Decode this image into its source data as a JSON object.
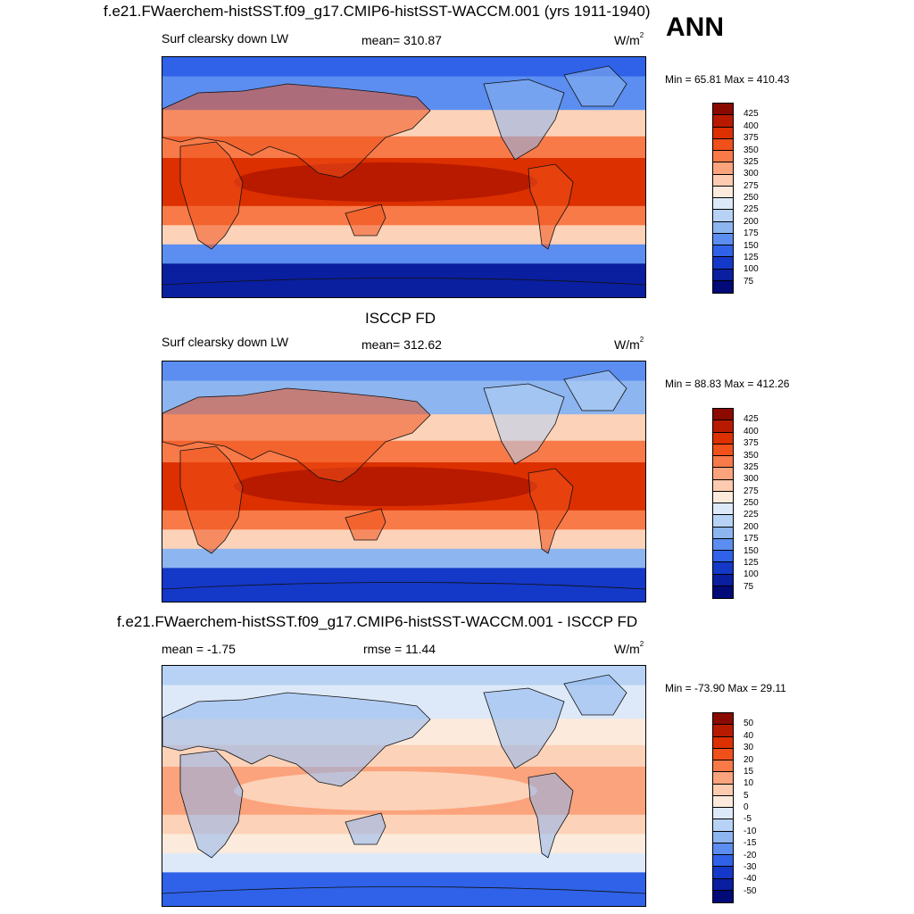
{
  "season": "ANN",
  "unit_base": "W/m",
  "unit_exp": "2",
  "panels": [
    {
      "title": "f.e21.FWaerchem-histSST.f09_g17.CMIP6-histSST-WACCM.001 (yrs 1911-1940)",
      "variable": "Surf clearsky down LW",
      "stat": "mean= 310.87",
      "minmax": "Min =  65.81 Max = 410.43",
      "colorbar_labels": [
        "425",
        "400",
        "375",
        "350",
        "325",
        "300",
        "275",
        "250",
        "225",
        "200",
        "175",
        "150",
        "125",
        "100",
        "75"
      ],
      "colorbar_colors": [
        "#8a0a00",
        "#b81a00",
        "#dc3000",
        "#f0501a",
        "#f77a48",
        "#fba37c",
        "#fdcbb0",
        "#fcebdc",
        "#dde9f8",
        "#b7d2f4",
        "#8db5ef",
        "#5b8ef0",
        "#2f62e8",
        "#1438c8",
        "#0a1ea0",
        "#020a78"
      ],
      "map_colors": {
        "polar_s": "#0a1ea0",
        "sub_s": "#5b8ef0",
        "mid": "#fcd2b8",
        "warm": "#f77a48",
        "hot": "#dc3000",
        "core": "#b81a00",
        "land_warm": "#f0501a",
        "cold_land": "#8db5ef",
        "arctic": "#2f62e8"
      }
    },
    {
      "title": "ISCCP FD",
      "variable": "Surf clearsky down LW",
      "stat": "mean= 312.62",
      "minmax": "Min =  88.83 Max = 412.26",
      "colorbar_labels": [
        "425",
        "400",
        "375",
        "350",
        "325",
        "300",
        "275",
        "250",
        "225",
        "200",
        "175",
        "150",
        "125",
        "100",
        "75"
      ],
      "colorbar_colors": [
        "#8a0a00",
        "#b81a00",
        "#dc3000",
        "#f0501a",
        "#f77a48",
        "#fba37c",
        "#fdcbb0",
        "#fcebdc",
        "#dde9f8",
        "#b7d2f4",
        "#8db5ef",
        "#5b8ef0",
        "#2f62e8",
        "#1438c8",
        "#0a1ea0",
        "#020a78"
      ],
      "map_colors": {
        "polar_s": "#1438c8",
        "sub_s": "#8db5ef",
        "mid": "#fcd2b8",
        "warm": "#f77a48",
        "hot": "#dc3000",
        "core": "#b81a00",
        "land_warm": "#f0501a",
        "cold_land": "#b7d2f4",
        "arctic": "#5b8ef0"
      }
    },
    {
      "title": "f.e21.FWaerchem-histSST.f09_g17.CMIP6-histSST-WACCM.001 - ISCCP FD",
      "variable": "mean =  -1.75",
      "stat": "rmse =  11.44",
      "minmax": "Min = -73.90 Max =  29.11",
      "colorbar_labels": [
        "50",
        "40",
        "30",
        "20",
        "15",
        "10",
        "5",
        "0",
        "-5",
        "-10",
        "-15",
        "-20",
        "-30",
        "-40",
        "-50"
      ],
      "colorbar_colors": [
        "#8a0a00",
        "#b81a00",
        "#dc3000",
        "#f0501a",
        "#f77a48",
        "#fba37c",
        "#fdcbb0",
        "#fcebdc",
        "#dde9f8",
        "#b7d2f4",
        "#8db5ef",
        "#5b8ef0",
        "#2f62e8",
        "#1438c8",
        "#0a1ea0",
        "#020a78"
      ],
      "map_colors": {
        "polar_s": "#2f62e8",
        "sub_s": "#dde9f8",
        "mid": "#fcebdc",
        "warm": "#fcd2b8",
        "hot": "#fba37c",
        "core": "#fcd2b8",
        "land_warm": "#8db5ef",
        "cold_land": "#8db5ef",
        "arctic": "#b7d2f4"
      }
    }
  ]
}
